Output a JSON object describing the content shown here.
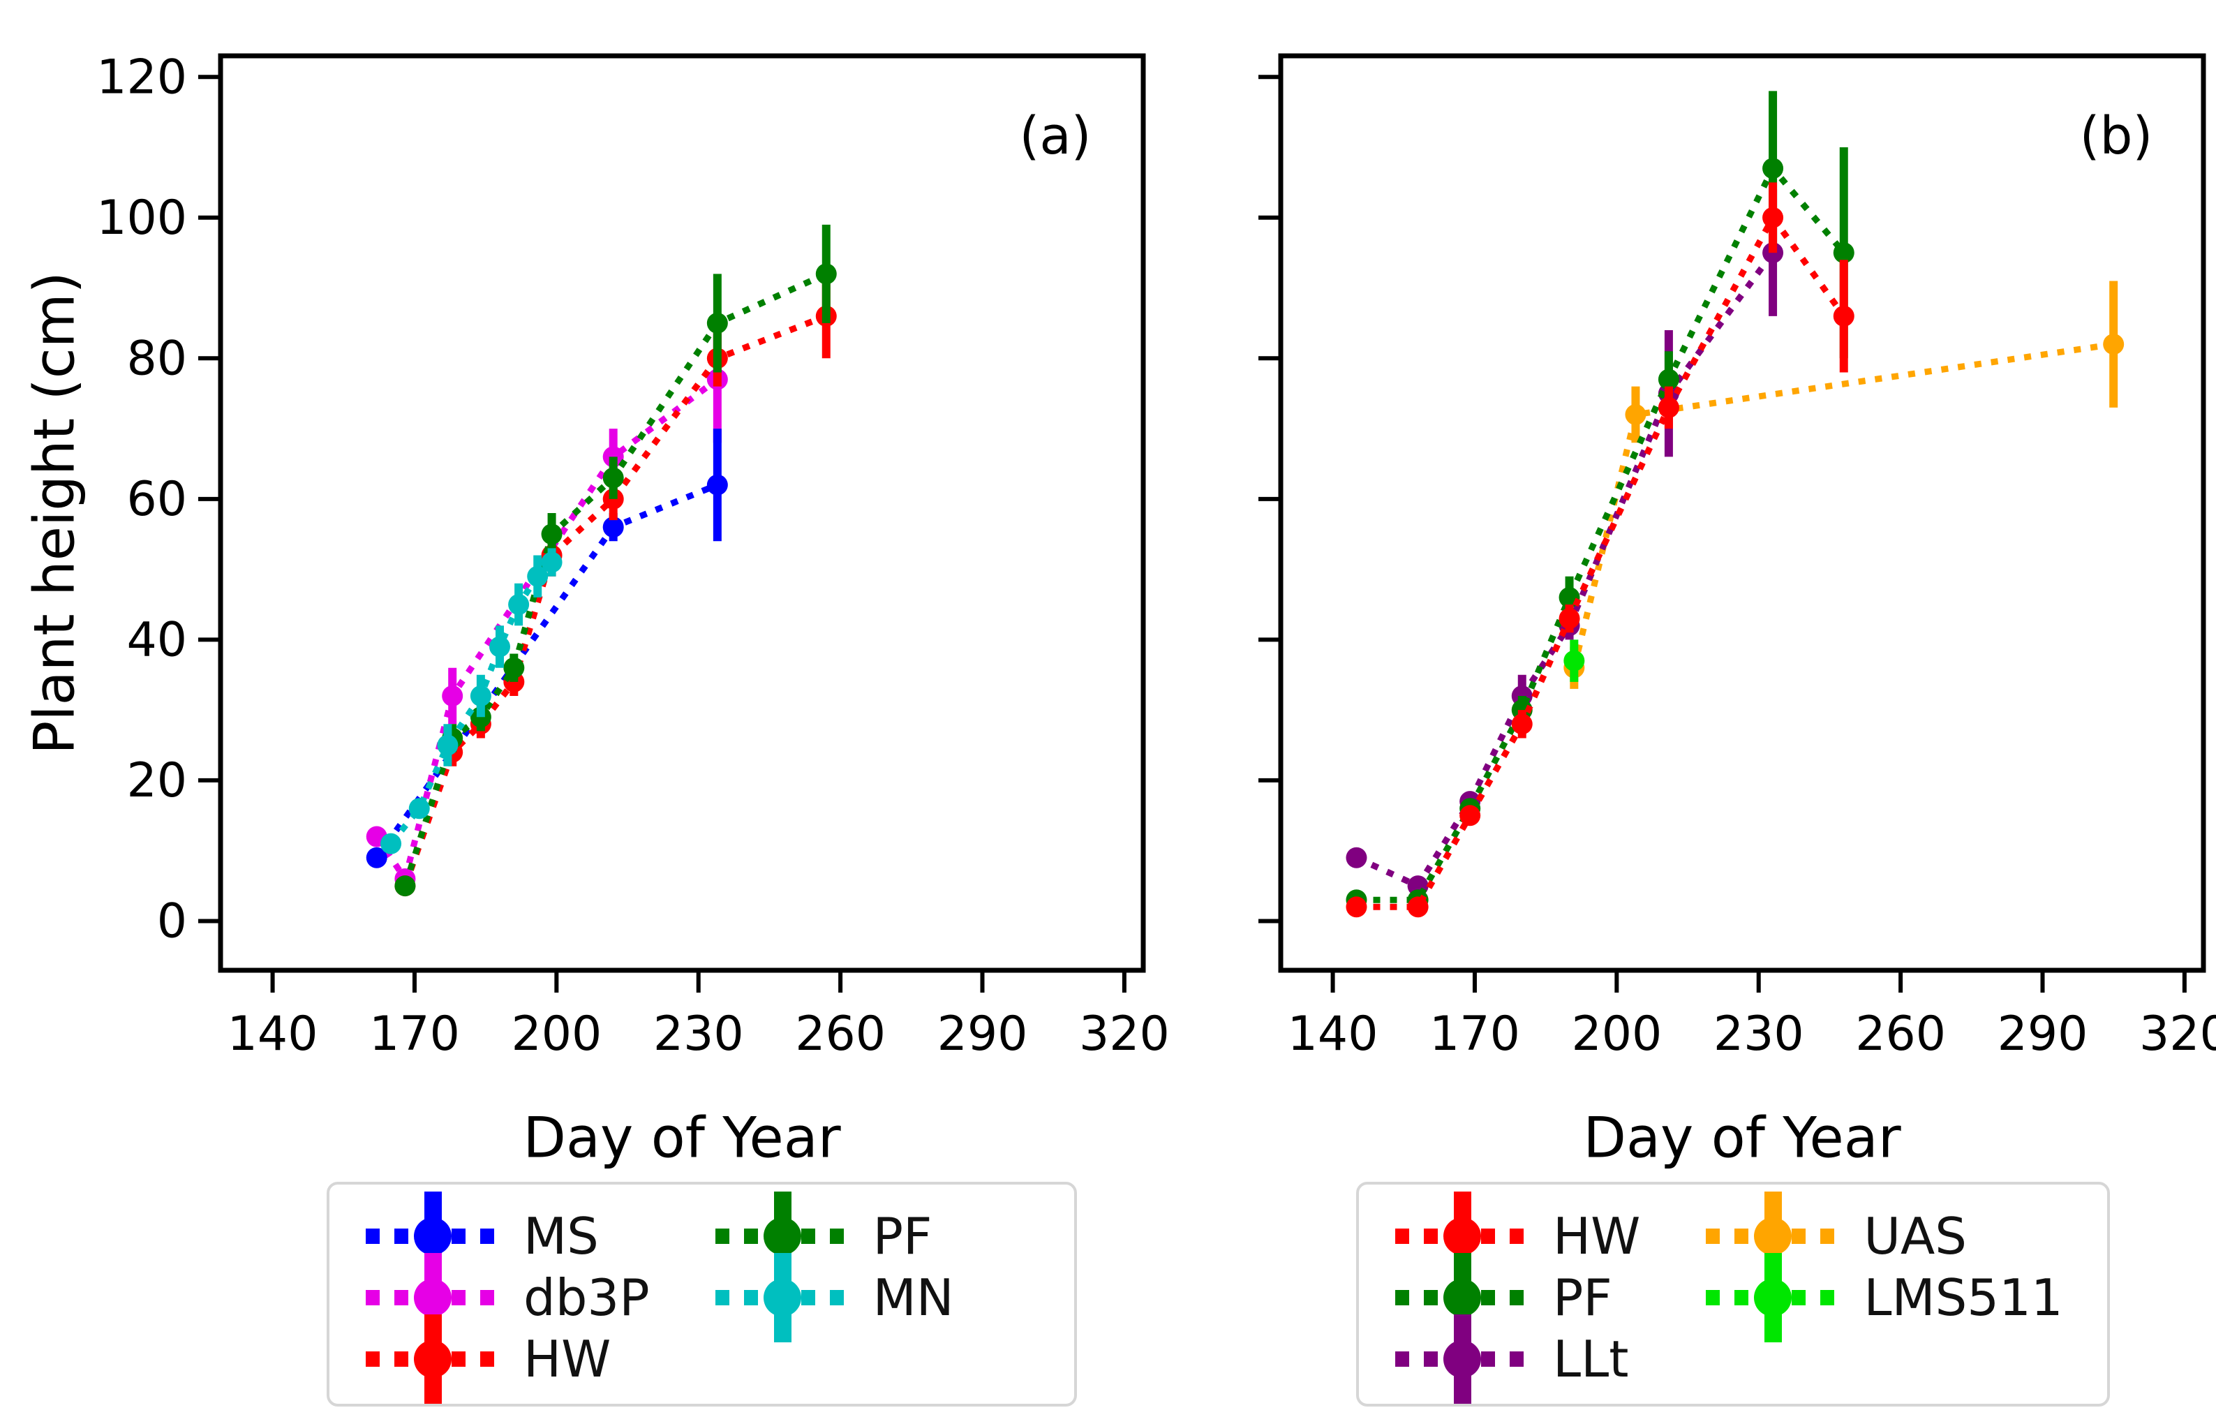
{
  "figure": {
    "ylabel": "Plant height (cm)",
    "xlabel_a": "Day of Year",
    "xlabel_b": "Day of Year",
    "panel_a_label": "(a)",
    "panel_b_label": "(b)"
  },
  "chart_data": [
    {
      "type": "line",
      "panel": "a",
      "panel_label": "(a)",
      "xlabel": "Day of Year",
      "ylabel": "Plant height (cm)",
      "xlim": [
        129,
        324
      ],
      "ylim": [
        -7,
        123
      ],
      "xticks": [
        140,
        170,
        200,
        230,
        260,
        290,
        320
      ],
      "yticks": [
        0,
        20,
        40,
        60,
        80,
        100,
        120
      ],
      "show_ytick_labels": true,
      "grid": false,
      "linestyle": "dotted",
      "marker": "circle",
      "series": [
        {
          "name": "db3P",
          "color": "#e600e6",
          "points": [
            [
              162,
              12,
              0
            ],
            [
              168,
              6,
              0
            ],
            [
              178,
              32,
              4
            ],
            [
              212,
              66,
              4
            ],
            [
              234,
              77,
              9
            ]
          ]
        },
        {
          "name": "MS",
          "color": "#0000ff",
          "points": [
            [
              162,
              9,
              0
            ],
            [
              212,
              56,
              2
            ],
            [
              234,
              62,
              8
            ]
          ]
        },
        {
          "name": "HW",
          "color": "#ff0000",
          "points": [
            [
              168,
              5,
              0
            ],
            [
              178,
              24,
              2
            ],
            [
              184,
              28,
              2
            ],
            [
              191,
              34,
              2
            ],
            [
              199,
              52,
              3
            ],
            [
              212,
              60,
              3
            ],
            [
              234,
              80,
              4
            ],
            [
              257,
              86,
              6
            ]
          ]
        },
        {
          "name": "PF",
          "color": "#008000",
          "points": [
            [
              168,
              5,
              0
            ],
            [
              178,
              26,
              2
            ],
            [
              184,
              29,
              2
            ],
            [
              191,
              36,
              2
            ],
            [
              199,
              55,
              3
            ],
            [
              212,
              63,
              3
            ],
            [
              234,
              85,
              7
            ],
            [
              257,
              92,
              7
            ]
          ]
        },
        {
          "name": "MN",
          "color": "#00bfbf",
          "points": [
            [
              165,
              11,
              0
            ],
            [
              171,
              16,
              0
            ],
            [
              177,
              25,
              3
            ],
            [
              184,
              32,
              3
            ],
            [
              188,
              39,
              3
            ],
            [
              192,
              45,
              3
            ],
            [
              196,
              49,
              3
            ],
            [
              199,
              51,
              2
            ]
          ]
        }
      ]
    },
    {
      "type": "line",
      "panel": "b",
      "panel_label": "(b)",
      "xlabel": "Day of Year",
      "ylabel": "",
      "xlim": [
        129,
        324
      ],
      "ylim": [
        -7,
        123
      ],
      "xticks": [
        140,
        170,
        200,
        230,
        260,
        290,
        320
      ],
      "yticks": [
        0,
        20,
        40,
        60,
        80,
        100,
        120
      ],
      "show_ytick_labels": false,
      "grid": false,
      "linestyle": "dotted",
      "marker": "circle",
      "series": [
        {
          "name": "UAS",
          "color": "#ffa500",
          "points": [
            [
              191,
              36,
              3
            ],
            [
              204,
              72,
              4
            ],
            [
              305,
              82,
              9
            ]
          ]
        },
        {
          "name": "LMS511",
          "color": "#00e600",
          "points": [
            [
              191,
              37,
              3
            ]
          ]
        },
        {
          "name": "LLt",
          "color": "#800080",
          "points": [
            [
              145,
              9,
              0
            ],
            [
              158,
              5,
              0
            ],
            [
              169,
              17,
              1
            ],
            [
              180,
              32,
              3
            ],
            [
              190,
              42,
              2
            ],
            [
              211,
              75,
              9
            ],
            [
              233,
              95,
              9
            ]
          ]
        },
        {
          "name": "PF",
          "color": "#008000",
          "points": [
            [
              145,
              3,
              0
            ],
            [
              158,
              3,
              0
            ],
            [
              169,
              16,
              1
            ],
            [
              180,
              30,
              2
            ],
            [
              190,
              46,
              3
            ],
            [
              211,
              77,
              4
            ],
            [
              233,
              107,
              11
            ],
            [
              248,
              95,
              15
            ]
          ]
        },
        {
          "name": "HW",
          "color": "#ff0000",
          "points": [
            [
              145,
              2,
              0
            ],
            [
              158,
              2,
              0
            ],
            [
              169,
              15,
              1
            ],
            [
              180,
              28,
              2
            ],
            [
              190,
              43,
              2
            ],
            [
              211,
              73,
              3
            ],
            [
              233,
              100,
              5
            ],
            [
              248,
              86,
              8
            ]
          ]
        }
      ]
    }
  ],
  "legends": [
    {
      "panel": "a",
      "columns": [
        [
          "MS",
          "db3P",
          "HW"
        ],
        [
          "PF",
          "MN"
        ]
      ]
    },
    {
      "panel": "b",
      "columns": [
        [
          "HW",
          "PF",
          "LLt"
        ],
        [
          "UAS",
          "LMS511"
        ]
      ]
    }
  ]
}
